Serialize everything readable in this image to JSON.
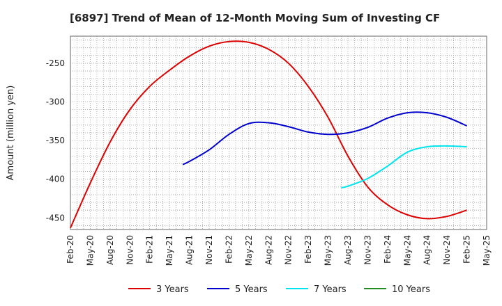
{
  "chart_data": {
    "type": "line",
    "title": "[6897]  Trend of Mean of 12-Month Moving Sum of Investing CF",
    "xlabel": "",
    "ylabel": "Amount (million yen)",
    "ylim": [
      -465,
      -215
    ],
    "y_ticks": [
      -250,
      -300,
      -350,
      -400,
      -450
    ],
    "x_ticks": [
      "Feb-20",
      "May-20",
      "Aug-20",
      "Nov-20",
      "Feb-21",
      "May-21",
      "Aug-21",
      "Nov-21",
      "Feb-22",
      "May-22",
      "Aug-22",
      "Nov-22",
      "Feb-23",
      "May-23",
      "Aug-23",
      "Nov-23",
      "Feb-24",
      "May-24",
      "Aug-24",
      "Nov-24",
      "Feb-25",
      "May-25"
    ],
    "x_range": [
      "Feb-20",
      "May-25"
    ],
    "grid": true,
    "legend_position": "bottom",
    "series": [
      {
        "name": "3 Years",
        "color": "#dd0000",
        "points": [
          [
            "Feb-20",
            -463
          ],
          [
            "May-20",
            -405
          ],
          [
            "Aug-20",
            -352
          ],
          [
            "Nov-20",
            -310
          ],
          [
            "Feb-21",
            -280
          ],
          [
            "May-21",
            -259
          ],
          [
            "Aug-21",
            -241
          ],
          [
            "Nov-21",
            -228
          ],
          [
            "Feb-22",
            -222
          ],
          [
            "May-22",
            -223
          ],
          [
            "Aug-22",
            -232
          ],
          [
            "Nov-22",
            -250
          ],
          [
            "Feb-23",
            -280
          ],
          [
            "May-23",
            -320
          ],
          [
            "Aug-23",
            -370
          ],
          [
            "Nov-23",
            -410
          ],
          [
            "Feb-24",
            -433
          ],
          [
            "May-24",
            -446
          ],
          [
            "Aug-24",
            -451
          ],
          [
            "Nov-24",
            -448
          ],
          [
            "Feb-25",
            -440
          ]
        ]
      },
      {
        "name": "5 Years",
        "color": "#0000cc",
        "points": [
          [
            "Jul-21",
            -381
          ],
          [
            "Aug-21",
            -377
          ],
          [
            "Nov-21",
            -362
          ],
          [
            "Feb-22",
            -342
          ],
          [
            "May-22",
            -328
          ],
          [
            "Aug-22",
            -327
          ],
          [
            "Nov-22",
            -332
          ],
          [
            "Feb-23",
            -339
          ],
          [
            "May-23",
            -342
          ],
          [
            "Aug-23",
            -340
          ],
          [
            "Nov-23",
            -333
          ],
          [
            "Feb-24",
            -321
          ],
          [
            "May-24",
            -314
          ],
          [
            "Aug-24",
            -314
          ],
          [
            "Nov-24",
            -320
          ],
          [
            "Feb-25",
            -331
          ]
        ]
      },
      {
        "name": "7 Years",
        "color": "#00e5ee",
        "points": [
          [
            "Jul-23",
            -411
          ],
          [
            "Aug-23",
            -409
          ],
          [
            "Nov-23",
            -399
          ],
          [
            "Feb-24",
            -383
          ],
          [
            "May-24",
            -365
          ],
          [
            "Aug-24",
            -358
          ],
          [
            "Nov-24",
            -357
          ],
          [
            "Feb-25",
            -358
          ]
        ]
      },
      {
        "name": "10 Years",
        "color": "#228b22",
        "points": []
      }
    ]
  }
}
